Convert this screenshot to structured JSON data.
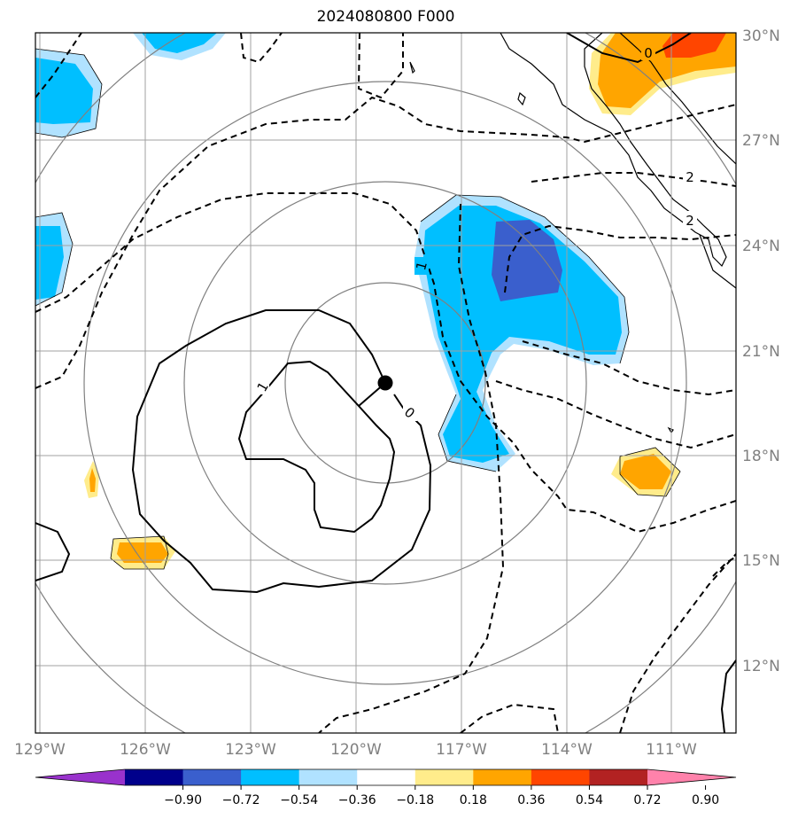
{
  "title": "2024080800 F000",
  "map": {
    "lat_labels": [
      "30°N",
      "27°N",
      "24°N",
      "21°N",
      "18°N",
      "15°N",
      "12°N"
    ],
    "lon_labels": [
      "129°W",
      "126°W",
      "123°W",
      "120°W",
      "117°W",
      "114°W",
      "111°W"
    ],
    "contour_labels": [
      "0",
      "1",
      "0",
      "1",
      "2",
      "2"
    ],
    "center_marker": "storm-center-dot"
  },
  "colorbar": {
    "ticks": [
      "−0.90",
      "−0.72",
      "−0.54",
      "−0.36",
      "−0.18",
      "0.18",
      "0.36",
      "0.54",
      "0.72",
      "0.90"
    ],
    "colors": [
      "#9932cc",
      "#00008b",
      "#3a5fcd",
      "#00bfff",
      "#b0e2ff",
      "#ffffff",
      "#ffec8b",
      "#ffa500",
      "#ff4500",
      "#b22222",
      "#ff82ab"
    ]
  }
}
